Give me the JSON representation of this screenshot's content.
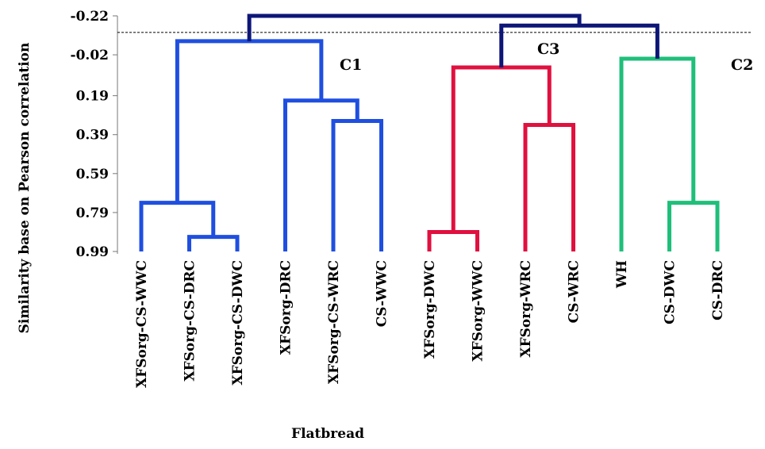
{
  "chart_data": {
    "type": "dendrogram",
    "xlabel": "Flatbread",
    "ylabel": "Similarity base on Pearson correlation",
    "yticks": [
      "-0.22",
      "-0.02",
      "0.19",
      "0.39",
      "0.59",
      "0.79",
      "0.99"
    ],
    "ytick_values": [
      -0.22,
      -0.02,
      0.19,
      0.39,
      0.59,
      0.79,
      0.99
    ],
    "ylim": [
      -0.22,
      0.99
    ],
    "y_inverted": true,
    "cut_line": -0.135,
    "leaves": [
      "XFSorg-CS-WWC",
      "XFSorg-CS-DRC",
      "XFSorg-CS-DWC",
      "XFSorg-DRC",
      "XFSorg-CS-WRC",
      "CS-WWC",
      "XFSorg-DWC",
      "XFSorg-WWC",
      "XFSorg-WRC",
      "CS-WRC",
      "WH",
      "CS-DWC",
      "CS-DRC"
    ],
    "clusters": [
      {
        "label": "C1",
        "color": "#1f4fe0"
      },
      {
        "label": "C3",
        "color": "#e0103f"
      },
      {
        "label": "C2",
        "color": "#1fbf7a"
      }
    ],
    "root_color": "#0d1677",
    "merges": [
      {
        "id": "m1",
        "children": [
          "XFSorg-CS-DRC",
          "XFSorg-CS-DWC"
        ],
        "height": 0.915,
        "color": "#1f4fe0"
      },
      {
        "id": "m2",
        "children": [
          "XFSorg-CS-WWC",
          "m1"
        ],
        "height": 0.74,
        "color": "#1f4fe0"
      },
      {
        "id": "m3",
        "children": [
          "XFSorg-CS-WRC",
          "CS-WWC"
        ],
        "height": 0.32,
        "color": "#1f4fe0"
      },
      {
        "id": "m4",
        "children": [
          "XFSorg-DRC",
          "m3"
        ],
        "height": 0.215,
        "color": "#1f4fe0"
      },
      {
        "id": "m5",
        "children": [
          "m2",
          "m4"
        ],
        "height": -0.09,
        "color": "#1f4fe0"
      },
      {
        "id": "m6",
        "children": [
          "XFSorg-DWC",
          "XFSorg-WWC"
        ],
        "height": 0.89,
        "color": "#e0103f"
      },
      {
        "id": "m7",
        "children": [
          "XFSorg-WRC",
          "CS-WRC"
        ],
        "height": 0.34,
        "color": "#e0103f"
      },
      {
        "id": "m8",
        "children": [
          "m6",
          "m7"
        ],
        "height": 0.045,
        "color": "#e0103f"
      },
      {
        "id": "m9",
        "children": [
          "CS-DWC",
          "CS-DRC"
        ],
        "height": 0.74,
        "color": "#1fbf7a"
      },
      {
        "id": "m10",
        "children": [
          "WH",
          "m9"
        ],
        "height": 0.0,
        "color": "#1fbf7a"
      },
      {
        "id": "m11",
        "children": [
          "m8",
          "m10"
        ],
        "height": -0.17,
        "color": "#0d1677"
      },
      {
        "id": "m12",
        "children": [
          "m5",
          "m11"
        ],
        "height": -0.22,
        "color": "#0d1677"
      }
    ]
  }
}
